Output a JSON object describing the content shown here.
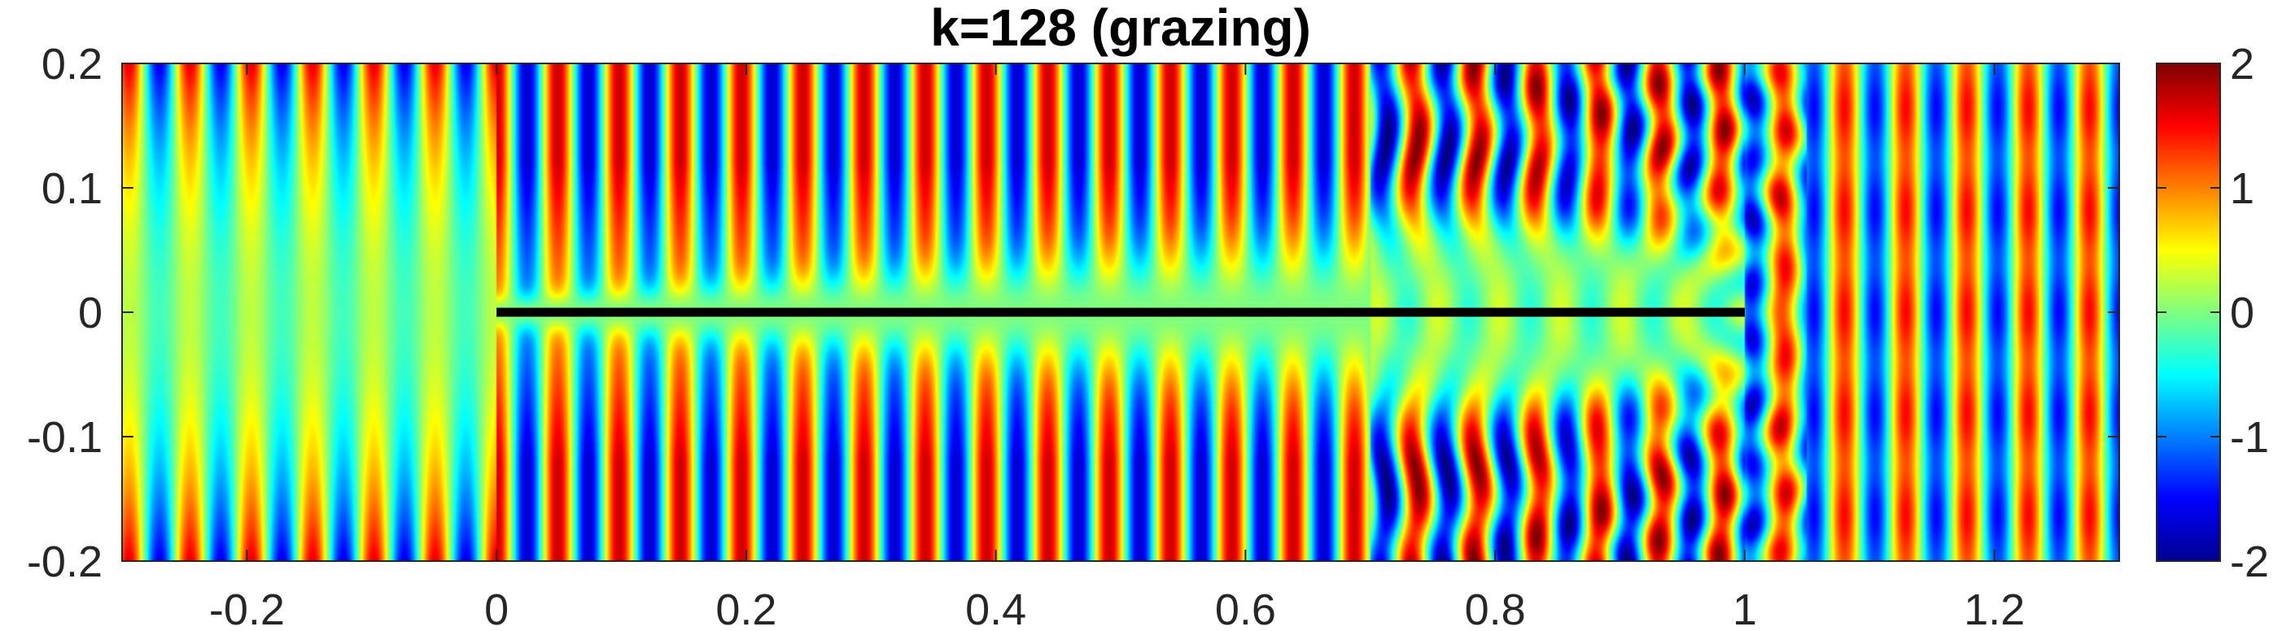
{
  "chart_data": {
    "type": "heatmap",
    "title": "k=128 (grazing)",
    "xlabel": "",
    "ylabel": "",
    "xlim": [
      -0.3,
      1.3
    ],
    "ylim": [
      -0.2,
      0.2
    ],
    "x_ticks": [
      "-0.2",
      "0",
      "0.2",
      "0.4",
      "0.6",
      "0.8",
      "1",
      "1.2"
    ],
    "x_tick_values": [
      -0.2,
      0,
      0.2,
      0.4,
      0.6,
      0.8,
      1,
      1.2
    ],
    "y_ticks": [
      "0.2",
      "0.1",
      "0",
      "-0.1",
      "-0.2"
    ],
    "y_tick_values": [
      0.2,
      0.1,
      0,
      -0.1,
      -0.2
    ],
    "wavenumber": 128,
    "field_description": "Real part of total wave field scattered by a flat plate (line segment from x=0 to x=1 at y=0) under grazing incidence",
    "obstacle": {
      "name": "plate",
      "x_start": 0,
      "x_end": 1,
      "y": 0,
      "color": "#000000"
    },
    "colorbar": {
      "range": [
        -2,
        2
      ],
      "ticks": [
        "2",
        "1",
        "0",
        "-1",
        "-2"
      ],
      "tick_values": [
        2,
        1,
        0,
        -1,
        -2
      ],
      "colormap": "jet",
      "placement": "right"
    },
    "grid": false
  }
}
